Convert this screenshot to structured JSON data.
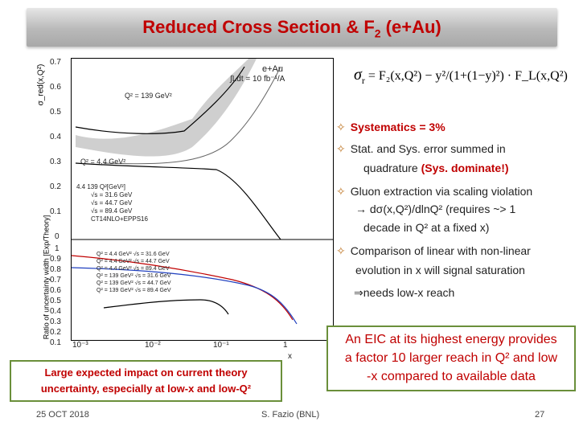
{
  "slide": {
    "title": "Reduced Cross Section & F",
    "title_sub": "2",
    "title_tail": " (e+Au)"
  },
  "top_plot": {
    "y_axis_label": "σ_red(x,Q²)",
    "y_ticks": [
      "0.7",
      "0.6",
      "0.5",
      "0.4",
      "0.3",
      "0.2",
      "0.1",
      "0"
    ],
    "corner_label_1": "e+Au",
    "corner_label_2": "∫Ldt = 10 fb⁻¹/A",
    "q2_high_label": "Q² = 139 GeV²",
    "q2_low_label": "Q² = 4.4 GeV²",
    "legend_header": "4.4   139 Q²[GeV²]",
    "legend_items": [
      "√s = 31.6 GeV",
      "√s = 44.7 GeV",
      "√s = 89.4 GeV",
      "CT14NLO+EPPS16"
    ]
  },
  "bottom_plot": {
    "y_axis_label": "Ratio of uncertainty width [Exp/Theory]",
    "y_ticks": [
      "1",
      "0.9",
      "0.8",
      "0.7",
      "0.6",
      "0.5",
      "0.4",
      "0.3",
      "0.2",
      "0.1"
    ],
    "x_ticks": [
      "10⁻³",
      "10⁻²",
      "10⁻¹",
      "1"
    ],
    "x_axis_label": "x",
    "legend_items": [
      "Q² = 4.4 GeV²  √s = 31.6 GeV",
      "Q² = 4.4 GeV²  √s = 44.7 GeV",
      "Q² = 4.4 GeV²  √s = 89.4 GeV",
      "Q² = 139 GeV²  √s = 31.6 GeV",
      "Q² = 139 GeV²  √s = 44.7 GeV",
      "Q² = 139 GeV²  √s = 89.4 GeV"
    ]
  },
  "formula": {
    "lhs": "σ",
    "lhs_sub": "r",
    "text": " = F₂(x,Q²) − y²/(1+(1−y)²) · F_L(x,Q²)"
  },
  "bullets": {
    "b1": "Systematics = 3%",
    "b2_line1": "Stat. and Sys. error summed in",
    "b2_line2": "quadrature ",
    "b2_red": "(Sys. dominate!)",
    "b3_line1": "Gluon extraction via scaling violation",
    "b3_line2": "→  dσ(x,Q²)/dlnQ² (requires ~> 1",
    "b3_line3": "decade in Q² at a fixed x)",
    "b4_line1": "Comparison of linear with non-linear",
    "b4_line2": "evolution in x will signal saturation",
    "b4_line3": "⇒needs low-x reach",
    "marker": "✧"
  },
  "callout": {
    "line1": "An EIC at its highest energy provides",
    "line2": "a factor 10 larger reach in Q² and low",
    "line3": "-x compared to available data"
  },
  "impact": {
    "line1": "Large expected impact on current theory",
    "line2": "uncertainty, especially at low-x and low-Q²"
  },
  "footer": {
    "date": "25 OCT 2018",
    "author": "S. Fazio (BNL)",
    "page": "27"
  },
  "colors": {
    "title_red": "#c00000",
    "accent_orange": "#c0792a",
    "box_border_green": "#6a8f3a"
  }
}
